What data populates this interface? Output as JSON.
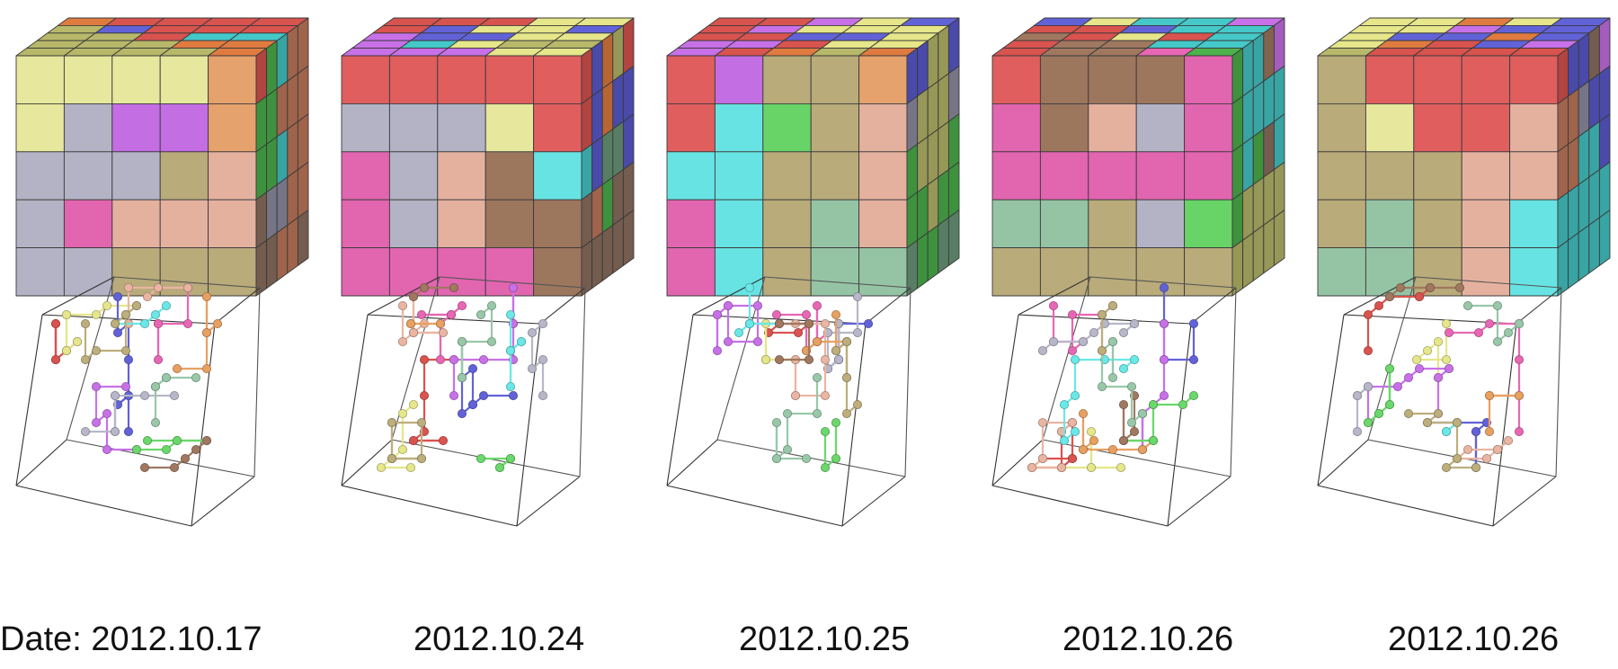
{
  "panels": [
    {
      "label": "Date: 2012.10.17",
      "top": [
        [
          "#e07b3f",
          "#d9534f",
          "#d9534f",
          "#d9534f",
          "#d9534f"
        ],
        [
          "#b8b86a",
          "#6262d8",
          "#d9534f",
          "#d9534f",
          "#d9534f"
        ],
        [
          "#b8b86a",
          "#b8b86a",
          "#d9534f",
          "#45c8c8",
          "#45c8c8"
        ],
        [
          "#b8b86a",
          "#b8b86a",
          "#b8b86a",
          "#e07b3f",
          "#e07b3f"
        ],
        [
          "#b8b86a",
          "#b8b86a",
          "#b8b86a",
          "#b8b86a",
          "#e07b3f"
        ]
      ],
      "front": [
        [
          "#ececa0",
          "#ececa0",
          "#ececa0",
          "#ececa0",
          "#eaa56f"
        ],
        [
          "#ececa0",
          "#b7b7c9",
          "#c870e8",
          "#c870e8",
          "#eaa56f"
        ],
        [
          "#b7b7c9",
          "#b7b7c9",
          "#b7b7c9",
          "#bdae7c",
          "#eab5a2"
        ],
        [
          "#b7b7c9",
          "#e767b4",
          "#eab5a2",
          "#eab5a2",
          "#eab5a2"
        ],
        [
          "#b7b7c9",
          "#b7b7c9",
          "#bdae7c",
          "#bdae7c",
          "#bdae7c"
        ]
      ],
      "right": [
        [
          "#d9534f",
          "#4cb24c",
          "#45c8c8",
          "#c27a5c",
          "#c27a5c"
        ],
        [
          "#4cb24c",
          "#4cb24c",
          "#c27a5c",
          "#c27a5c",
          "#c27a5c"
        ],
        [
          "#4cb24c",
          "#4cb24c",
          "#45c8c8",
          "#c27a5c",
          "#c27a5c"
        ],
        [
          "#8e7060",
          "#8f8fa3",
          "#8f8fa3",
          "#c27a5c",
          "#c27a5c"
        ],
        [
          "#8e7060",
          "#8e7060",
          "#c27a5c",
          "#c27a5c",
          "#8e7060"
        ]
      ]
    },
    {
      "label": "2012.10.24",
      "top": [
        [
          "#d9534f",
          "#d9534f",
          "#d9534f",
          "#e6e68a",
          "#e6e68a"
        ],
        [
          "#d9534f",
          "#6262d8",
          "#e6e68a",
          "#e6e68a",
          "#6262d8"
        ],
        [
          "#c870e8",
          "#6262d8",
          "#6262d8",
          "#e6e68a",
          "#e6e68a"
        ],
        [
          "#c870e8",
          "#45c8c8",
          "#e6e68a",
          "#b8b86a",
          "#b8b86a"
        ],
        [
          "#c870e8",
          "#c870e8",
          "#c870e8",
          "#e6e68a",
          "#e6e68a"
        ]
      ],
      "front": [
        [
          "#e56060",
          "#e56060",
          "#e56060",
          "#e56060",
          "#e56060"
        ],
        [
          "#b7b7c9",
          "#b7b7c9",
          "#b7b7c9",
          "#ececa0",
          "#e56060"
        ],
        [
          "#e767b4",
          "#b7b7c9",
          "#eab5a2",
          "#a07860",
          "#6ae8e8"
        ],
        [
          "#e767b4",
          "#b7b7c9",
          "#eab5a2",
          "#a07860",
          "#a07860"
        ],
        [
          "#e767b4",
          "#e767b4",
          "#e767b4",
          "#e767b4",
          "#a07860"
        ]
      ],
      "right": [
        [
          "#d9534f",
          "#5a5acf",
          "#e07b3f",
          "#b8b86a",
          "#d9534f"
        ],
        [
          "#d9534f",
          "#5a5acf",
          "#e07b3f",
          "#5a5acf",
          "#5a5acf"
        ],
        [
          "#45c8c8",
          "#5a5acf",
          "#6a9a7a",
          "#6a9a7a",
          "#5a5acf"
        ],
        [
          "#8e7060",
          "#c27a5c",
          "#4cb24c",
          "#8e7060",
          "#8e7060"
        ],
        [
          "#8e7060",
          "#8e7060",
          "#8e7060",
          "#8e7060",
          "#8e7060"
        ]
      ]
    },
    {
      "label": "2012.10.25",
      "top": [
        [
          "#d9534f",
          "#d9534f",
          "#c870e8",
          "#e6e68a",
          "#6262d8"
        ],
        [
          "#d9534f",
          "#c870e8",
          "#e6e68a",
          "#e6e68a",
          "#e6e68a"
        ],
        [
          "#d9534f",
          "#d9534f",
          "#6262d8",
          "#6262d8",
          "#e6e68a"
        ],
        [
          "#c870e8",
          "#c870e8",
          "#d9534f",
          "#e6e68a",
          "#e6e68a"
        ],
        [
          "#c870e8",
          "#d9534f",
          "#e07b3f",
          "#b8b86a",
          "#e07b3f"
        ]
      ],
      "front": [
        [
          "#e56060",
          "#c870e8",
          "#bdae7c",
          "#bdae7c",
          "#eaa56f"
        ],
        [
          "#e56060",
          "#6ae8e8",
          "#6ad86a",
          "#bdae7c",
          "#eab5a2"
        ],
        [
          "#6ae8e8",
          "#6ae8e8",
          "#bdae7c",
          "#bdae7c",
          "#eab5a2"
        ],
        [
          "#e767b4",
          "#6ae8e8",
          "#bdae7c",
          "#98c8a8",
          "#eab5a2"
        ],
        [
          "#e767b4",
          "#6ae8e8",
          "#bdae7c",
          "#98c8a8",
          "#98c8a8"
        ]
      ],
      "right": [
        [
          "#5a5acf",
          "#5a5acf",
          "#b8b86a",
          "#b8b86a",
          "#5a5acf"
        ],
        [
          "#8f8fa3",
          "#b8b86a",
          "#b8b86a",
          "#b8b86a",
          "#8f8fa3"
        ],
        [
          "#4cb24c",
          "#b8b86a",
          "#b8b86a",
          "#b8b86a",
          "#4cb24c"
        ],
        [
          "#4cb24c",
          "#4cb24c",
          "#b8b86a",
          "#4cb24c",
          "#4cb24c"
        ],
        [
          "#6a9a7a",
          "#4cb24c",
          "#4cb24c",
          "#6a9a7a",
          "#6a9a7a"
        ]
      ]
    },
    {
      "label": "2012.10.26",
      "top": [
        [
          "#6262d8",
          "#e6e68a",
          "#45c8c8",
          "#45c8c8",
          "#c870e8"
        ],
        [
          "#d9534f",
          "#d9534f",
          "#6262d8",
          "#45c8c8",
          "#45c8c8"
        ],
        [
          "#a07860",
          "#d9534f",
          "#e6e68a",
          "#d9534f",
          "#45c8c8"
        ],
        [
          "#d9534f",
          "#a07860",
          "#a07860",
          "#45c8c8",
          "#45c8c8"
        ],
        [
          "#d9534f",
          "#a07860",
          "#a07860",
          "#e767b4",
          "#4cb24c"
        ]
      ],
      "front": [
        [
          "#e56060",
          "#a07860",
          "#a07860",
          "#a07860",
          "#e767b4"
        ],
        [
          "#e767b4",
          "#a07860",
          "#eab5a2",
          "#b7b7c9",
          "#e767b4"
        ],
        [
          "#e767b4",
          "#e767b4",
          "#e767b4",
          "#e767b4",
          "#e767b4"
        ],
        [
          "#98c8a8",
          "#98c8a8",
          "#bdae7c",
          "#b7b7c9",
          "#6ad86a"
        ],
        [
          "#bdae7c",
          "#bdae7c",
          "#bdae7c",
          "#bdae7c",
          "#bdae7c"
        ]
      ],
      "right": [
        [
          "#4cb24c",
          "#45c8c8",
          "#45c8c8",
          "#a07860",
          "#c870e8"
        ],
        [
          "#4cb24c",
          "#45c8c8",
          "#45c8c8",
          "#45c8c8",
          "#45c8c8"
        ],
        [
          "#4cb24c",
          "#45c8c8",
          "#4cb24c",
          "#8e7060",
          "#45c8c8"
        ],
        [
          "#4cb24c",
          "#b8b86a",
          "#b8b86a",
          "#b8b86a",
          "#b8b86a"
        ],
        [
          "#b8b86a",
          "#b8b86a",
          "#b8b86a",
          "#b8b86a",
          "#b8b86a"
        ]
      ]
    },
    {
      "label": "2012.10.26",
      "top": [
        [
          "#e6e68a",
          "#e6e68a",
          "#e07b3f",
          "#e6e68a",
          "#6262d8"
        ],
        [
          "#e6e68a",
          "#e6e68a",
          "#c870e8",
          "#6262d8",
          "#6262d8"
        ],
        [
          "#e6e68a",
          "#6262d8",
          "#6262d8",
          "#e07b3f",
          "#6262d8"
        ],
        [
          "#e6e68a",
          "#e07b3f",
          "#d9534f",
          "#6262d8",
          "#c870e8"
        ],
        [
          "#b8b86a",
          "#d9534f",
          "#d9534f",
          "#d9534f",
          "#d9534f"
        ]
      ],
      "front": [
        [
          "#bdae7c",
          "#e56060",
          "#e56060",
          "#e56060",
          "#e56060"
        ],
        [
          "#bdae7c",
          "#ececa0",
          "#e56060",
          "#e56060",
          "#eab5a2"
        ],
        [
          "#bdae7c",
          "#bdae7c",
          "#bdae7c",
          "#eab5a2",
          "#eab5a2"
        ],
        [
          "#bdae7c",
          "#98c8a8",
          "#bdae7c",
          "#eab5a2",
          "#6ae8e8"
        ],
        [
          "#98c8a8",
          "#98c8a8",
          "#bdae7c",
          "#eab5a2",
          "#6ae8e8"
        ]
      ],
      "right": [
        [
          "#d9534f",
          "#5a5acf",
          "#5a5acf",
          "#8e7060",
          "#c870e8"
        ],
        [
          "#c27a5c",
          "#c27a5c",
          "#8f8fa3",
          "#5a5acf",
          "#5a5acf"
        ],
        [
          "#c27a5c",
          "#c27a5c",
          "#45c8c8",
          "#45c8c8",
          "#5a5acf"
        ],
        [
          "#45c8c8",
          "#45c8c8",
          "#45c8c8",
          "#45c8c8",
          "#45c8c8"
        ],
        [
          "#45c8c8",
          "#45c8c8",
          "#45c8c8",
          "#45c8c8",
          "#45c8c8"
        ]
      ]
    }
  ],
  "node_palette": [
    "#d9534f",
    "#e6e68a",
    "#6262d8",
    "#c870e8",
    "#e767b4",
    "#b7b7c9",
    "#eab5a2",
    "#e8a060",
    "#6ae8e8",
    "#6ad86a",
    "#a07860",
    "#98c8a8",
    "#bdae7c"
  ]
}
